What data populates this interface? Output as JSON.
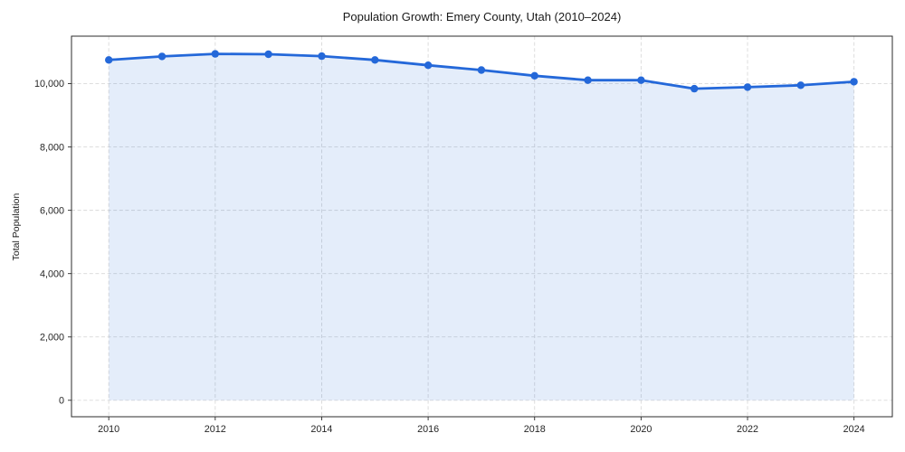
{
  "chart_data": {
    "type": "line",
    "title": "Population Growth: Emery County, Utah (2010–2024)",
    "xlabel": "",
    "ylabel": "Total Population",
    "x": [
      2010,
      2011,
      2012,
      2013,
      2014,
      2015,
      2016,
      2017,
      2018,
      2019,
      2020,
      2021,
      2022,
      2023,
      2024
    ],
    "series": [
      {
        "name": "Total Population",
        "values": [
          10750,
          10860,
          10940,
          10930,
          10870,
          10750,
          10580,
          10430,
          10250,
          10110,
          10110,
          9840,
          9890,
          9950,
          10060
        ]
      }
    ],
    "xticks": {
      "values": [
        2010,
        2012,
        2014,
        2016,
        2018,
        2020,
        2022,
        2024
      ],
      "labels": [
        "2010",
        "2012",
        "2014",
        "2016",
        "2018",
        "2020",
        "2022",
        "2024"
      ]
    },
    "yticks": {
      "values": [
        0,
        2000,
        4000,
        6000,
        8000,
        10000
      ],
      "labels": [
        "0",
        "2,000",
        "4,000",
        "6,000",
        "8,000",
        "10,000"
      ]
    },
    "xlim": [
      2009.3,
      2024.72
    ],
    "ylim": [
      -520,
      11500
    ],
    "fill_baseline": 0,
    "grid": true,
    "grid_style": "dashed",
    "legend": "none",
    "marker": "circle",
    "colors": {
      "line": "#2468d9",
      "marker": "#2468d9",
      "fill": "rgba(36, 104, 217, 0.12)",
      "grid": "#d9d9d9",
      "spine": "#2b2b2b",
      "text": "#262626",
      "background": "#ffffff"
    }
  }
}
